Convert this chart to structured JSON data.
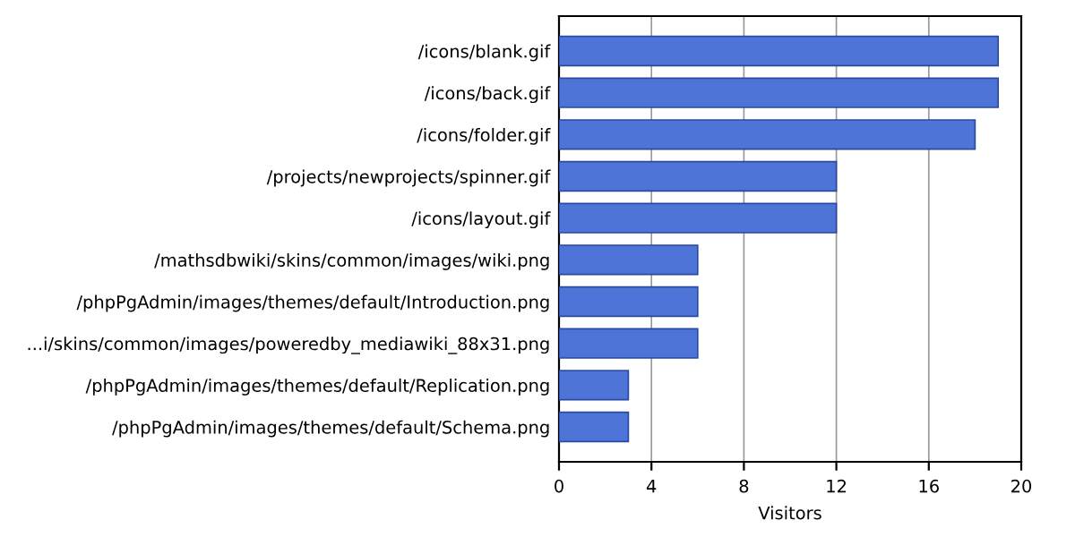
{
  "chart_data": {
    "type": "bar",
    "orientation": "horizontal",
    "xlabel": "Visitors",
    "categories": [
      "/icons/blank.gif",
      "/icons/back.gif",
      "/icons/folder.gif",
      "/projects/newprojects/spinner.gif",
      "/icons/layout.gif",
      "/mathsdbwiki/skins/common/images/wiki.png",
      "/phpPgAdmin/images/themes/default/Introduction.png",
      "...i/skins/common/images/poweredby_mediawiki_88x31.png",
      "/phpPgAdmin/images/themes/default/Replication.png",
      "/phpPgAdmin/images/themes/default/Schema.png"
    ],
    "values": [
      19,
      19,
      18,
      12,
      12,
      6,
      6,
      6,
      3,
      3
    ],
    "color": "#4f74d8",
    "xlim": [
      0,
      20
    ],
    "xticks": [
      0,
      4,
      8,
      12,
      16,
      20
    ],
    "grid": "x",
    "legend": false
  }
}
